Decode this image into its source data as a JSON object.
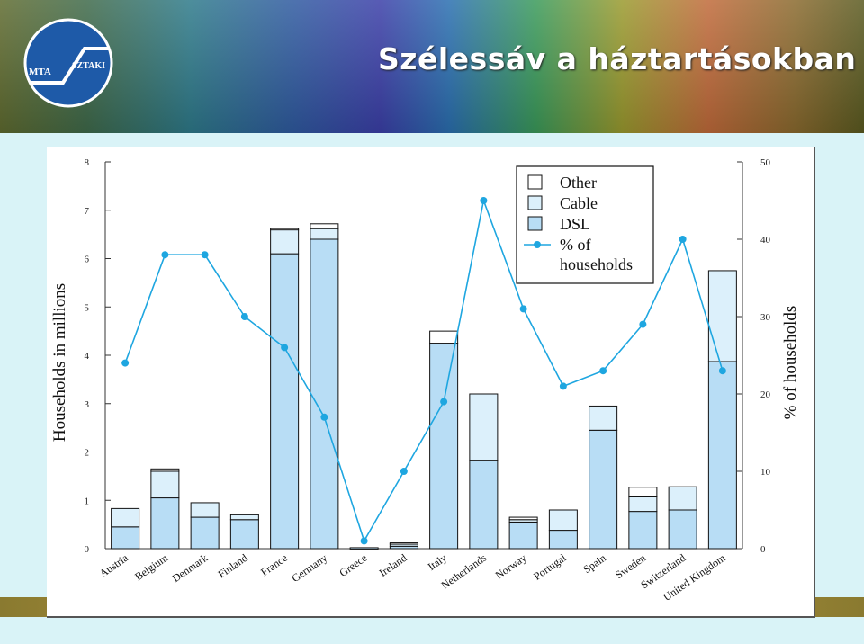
{
  "header": {
    "title": "Szélessáv a háztartásokban",
    "logo_text_left": "MTA",
    "logo_text_right": "SZTAKI"
  },
  "colors": {
    "dsl": "#b8ddf5",
    "cable": "#dcf0fb",
    "other": "#ffffff",
    "line": "#1ea6e0",
    "logo_blue": "#1e5aa8"
  },
  "chart_data": {
    "type": "bar",
    "stacked": true,
    "xlabel": "",
    "ylabel": "Households in millions",
    "y2label": "% of households",
    "ylim": [
      0,
      8
    ],
    "y2lim": [
      0,
      50
    ],
    "yticks": [
      "0",
      "1",
      "2",
      "3",
      "4",
      "5",
      "6",
      "7",
      "8"
    ],
    "y2ticks": [
      "0",
      "10",
      "20",
      "30",
      "40",
      "50"
    ],
    "categories": [
      "Austria",
      "Belgium",
      "Denmark",
      "Finland",
      "France",
      "Germany",
      "Greece",
      "Ireland",
      "Italy",
      "Netherlands",
      "Norway",
      "Portugal",
      "Spain",
      "Sweden",
      "Switzerland",
      "United Kingdom"
    ],
    "series": [
      {
        "name": "DSL",
        "values": [
          0.45,
          1.05,
          0.65,
          0.6,
          6.1,
          6.4,
          0.02,
          0.05,
          4.25,
          1.83,
          0.55,
          0.38,
          2.45,
          0.77,
          0.8,
          3.87
        ]
      },
      {
        "name": "Cable",
        "values": [
          0.38,
          0.55,
          0.3,
          0.1,
          0.5,
          0.22,
          0.0,
          0.05,
          0.0,
          1.37,
          0.05,
          0.42,
          0.5,
          0.3,
          0.48,
          1.88
        ]
      },
      {
        "name": "Other",
        "values": [
          0.0,
          0.05,
          0.0,
          0.0,
          0.02,
          0.1,
          0.0,
          0.02,
          0.25,
          0.0,
          0.05,
          0.0,
          0.0,
          0.2,
          0.0,
          0.0
        ]
      },
      {
        "name": "% of households",
        "type": "line",
        "axis": "right",
        "values": [
          24,
          38,
          38,
          30,
          26,
          17,
          1,
          10,
          19,
          45,
          31,
          21,
          23,
          29,
          40,
          23
        ]
      }
    ],
    "legend": {
      "position": "top-right",
      "entries": [
        "Other",
        "Cable",
        "DSL",
        "% of",
        "households"
      ]
    },
    "grid": false
  }
}
